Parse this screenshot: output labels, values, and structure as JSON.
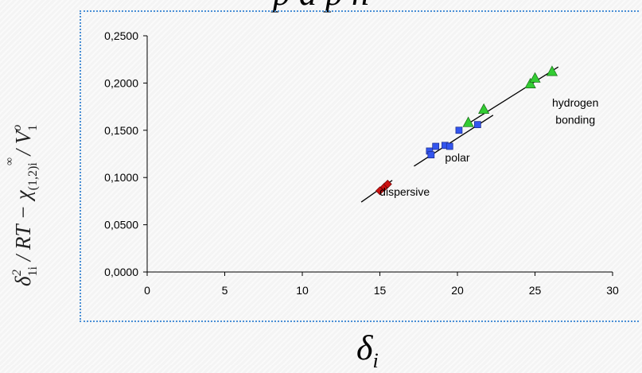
{
  "header": {
    "partial_text": "p        a          p          n"
  },
  "chart_data": {
    "type": "scatter",
    "xlim": [
      0,
      30
    ],
    "ylim": [
      0,
      0.25
    ],
    "x_ticks": [
      "0",
      "5",
      "10",
      "15",
      "20",
      "25",
      "30"
    ],
    "y_ticks": [
      "0,0000",
      "0,0500",
      "0,1000",
      "0,1500",
      "0,2000",
      "0,2500"
    ],
    "xlabel": "δi",
    "ylabel": "δ1i² / RT − χ∞(1,2)i / V1°",
    "grid": false,
    "series": [
      {
        "color": "#cc1111",
        "marker": "diamond",
        "points": [
          [
            15.0,
            0.086
          ],
          [
            15.3,
            0.09
          ],
          [
            15.5,
            0.093
          ]
        ]
      },
      {
        "color": "#3355ee",
        "marker": "square",
        "points": [
          [
            18.2,
            0.128
          ],
          [
            18.3,
            0.124
          ],
          [
            18.6,
            0.133
          ],
          [
            19.2,
            0.134
          ],
          [
            19.5,
            0.133
          ],
          [
            20.1,
            0.15
          ],
          [
            21.3,
            0.156
          ]
        ]
      },
      {
        "color": "#33cc33",
        "marker": "triangle",
        "points": [
          [
            20.7,
            0.158
          ],
          [
            21.7,
            0.172
          ],
          [
            24.7,
            0.199
          ],
          [
            25.0,
            0.205
          ],
          [
            26.1,
            0.212
          ]
        ]
      }
    ],
    "fit_lines": [
      {
        "x": [
          13.8,
          15.8
        ],
        "y": [
          0.074,
          0.097
        ]
      },
      {
        "x": [
          17.2,
          22.3
        ],
        "y": [
          0.112,
          0.166
        ]
      },
      {
        "x": [
          20.5,
          26.5
        ],
        "y": [
          0.155,
          0.217
        ]
      }
    ],
    "annotations": [
      {
        "text": "dispersive",
        "x": 16.6,
        "y": 0.081
      },
      {
        "text": "polar",
        "x": 20.0,
        "y": 0.117
      },
      {
        "text": "hydrogen",
        "x": 27.6,
        "y": 0.175
      },
      {
        "text": "bonding",
        "x": 27.6,
        "y": 0.157
      }
    ]
  }
}
